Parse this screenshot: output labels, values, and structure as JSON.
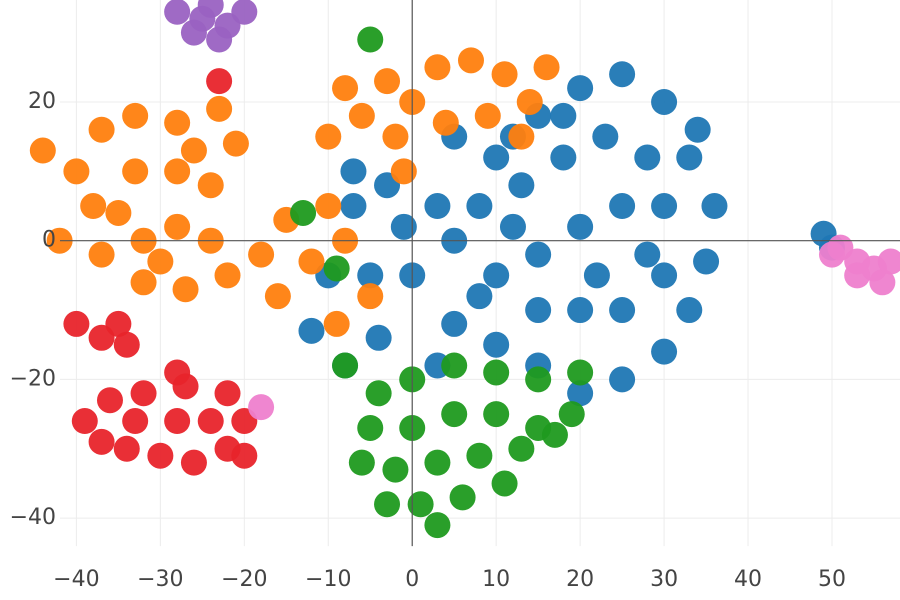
{
  "chart_data": {
    "type": "scatter",
    "xlim": [
      -49.1,
      58.1
    ],
    "ylim": [
      -51.8,
      34.7
    ],
    "xticks": [
      {
        "value": -40,
        "label": "−40"
      },
      {
        "value": -30,
        "label": "−30"
      },
      {
        "value": -20,
        "label": "−20"
      },
      {
        "value": -10,
        "label": "−10"
      },
      0,
      10,
      20,
      30,
      40,
      50
    ],
    "yticks": [
      {
        "value": -40,
        "label": "−40"
      },
      {
        "value": -20,
        "label": "−20"
      },
      0,
      20
    ],
    "grid": true,
    "series": [
      {
        "color": "#1f77b4",
        "x": [
          5,
          10,
          15,
          20,
          25,
          30,
          33,
          36,
          35,
          33,
          30,
          25,
          20,
          15,
          10,
          5,
          0,
          3,
          8,
          13,
          18,
          23,
          28,
          25,
          20,
          15,
          10,
          5,
          20,
          25,
          30,
          30,
          15,
          -3,
          -7,
          -10,
          -12,
          -8,
          -4,
          -5,
          -1,
          22,
          12,
          28,
          18,
          8,
          3,
          34,
          12,
          -7,
          49,
          50
        ],
        "values": [
          15,
          12,
          18,
          22,
          24,
          20,
          12,
          5,
          -3,
          -10,
          -16,
          -20,
          -22,
          -18,
          -15,
          -12,
          -5,
          5,
          5,
          8,
          12,
          15,
          12,
          5,
          2,
          -2,
          -5,
          0,
          -10,
          -10,
          -5,
          5,
          -10,
          8,
          5,
          -5,
          -13,
          -18,
          -14,
          -5,
          2,
          -5,
          2,
          -2,
          18,
          -8,
          -18,
          16,
          15,
          10,
          1,
          -1
        ]
      },
      {
        "color": "#ff7f0e",
        "x": [
          -44,
          -40,
          -37,
          -33,
          -28,
          -23,
          -21,
          -24,
          -28,
          -33,
          -38,
          -42,
          -37,
          -32,
          -28,
          -24,
          -22,
          -27,
          -32,
          -35,
          -30,
          -18,
          -15,
          -12,
          -16,
          -8,
          -10,
          -5,
          -9,
          -6,
          -3,
          0,
          3,
          7,
          11,
          14,
          13,
          9,
          4,
          -2,
          -10,
          -8,
          16,
          -1,
          -26
        ],
        "values": [
          13,
          10,
          16,
          18,
          17,
          19,
          14,
          8,
          10,
          10,
          5,
          0,
          -2,
          0,
          2,
          0,
          -5,
          -7,
          -6,
          4,
          -3,
          -2,
          3,
          -3,
          -8,
          0,
          5,
          -8,
          -12,
          18,
          23,
          20,
          25,
          26,
          24,
          20,
          15,
          18,
          17,
          15,
          15,
          22,
          25,
          10,
          13
        ]
      },
      {
        "color": "#1f9a1f",
        "x": [
          -8,
          -4,
          0,
          5,
          10,
          15,
          20,
          19,
          15,
          10,
          5,
          0,
          -5,
          -6,
          -2,
          3,
          8,
          13,
          17,
          11,
          6,
          1,
          -3,
          3,
          -9,
          -13,
          -5
        ],
        "values": [
          -18,
          -22,
          -20,
          -18,
          -19,
          -20,
          -19,
          -25,
          -27,
          -25,
          -25,
          -27,
          -27,
          -32,
          -33,
          -32,
          -31,
          -30,
          -28,
          -35,
          -37,
          -38,
          -38,
          -41,
          -4,
          4,
          29
        ]
      },
      {
        "color": "#e8242b",
        "x": [
          -39,
          -36,
          -32,
          -27,
          -22,
          -20,
          -22,
          -26,
          -30,
          -34,
          -37,
          -33,
          -28,
          -24,
          -20,
          -37,
          -35,
          -34,
          -40,
          -28,
          -23
        ],
        "values": [
          -26,
          -23,
          -22,
          -21,
          -22,
          -26,
          -30,
          -32,
          -31,
          -30,
          -29,
          -26,
          -26,
          -26,
          -31,
          -14,
          -12,
          -15,
          -12,
          -19,
          23
        ]
      },
      {
        "color": "#9a62c2",
        "x": [
          -28,
          -25,
          -22,
          -23,
          -26,
          -20,
          -24
        ],
        "values": [
          33,
          32,
          31,
          29,
          30,
          33,
          34
        ]
      },
      {
        "color": "#ee7fce",
        "x": [
          51,
          53,
          55,
          56,
          53,
          57,
          50,
          -18
        ],
        "values": [
          -1,
          -3,
          -4,
          -6,
          -5,
          -3,
          -2,
          -24
        ]
      }
    ]
  }
}
